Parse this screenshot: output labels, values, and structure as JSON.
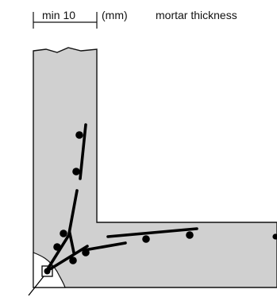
{
  "labels": {
    "dimension": "min 10",
    "unit": "(mm)",
    "description": "mortar thickness"
  },
  "colors": {
    "concrete_fill": "#d0d0d0",
    "outline": "#111111",
    "rebar": "#000000",
    "background": "#ffffff"
  }
}
